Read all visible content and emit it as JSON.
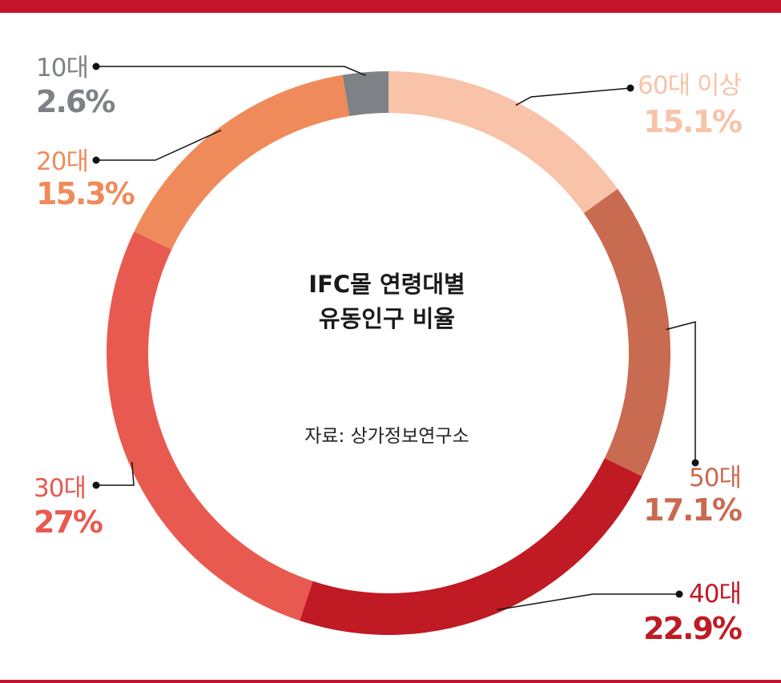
{
  "chart_data": {
    "type": "donut",
    "title": "IFC몰 연령대별 유동인구 비율",
    "source": "자료: 상가정보연구소",
    "slices": [
      {
        "label": "60대 이상",
        "value": 15.1,
        "display": "15.1%",
        "color": "#f8c3a8"
      },
      {
        "label": "50대",
        "value": 17.1,
        "display": "17.1%",
        "color": "#c96b51"
      },
      {
        "label": "40대",
        "value": 22.9,
        "display": "22.9%",
        "color": "#c01a24"
      },
      {
        "label": "30대",
        "value": 27,
        "display": "27%",
        "color": "#e85a50"
      },
      {
        "label": "20대",
        "value": 15.3,
        "display": "15.3%",
        "color": "#ef8b5b"
      },
      {
        "label": "10대",
        "value": 2.6,
        "display": "2.6%",
        "color": "#7e8286"
      }
    ]
  }
}
